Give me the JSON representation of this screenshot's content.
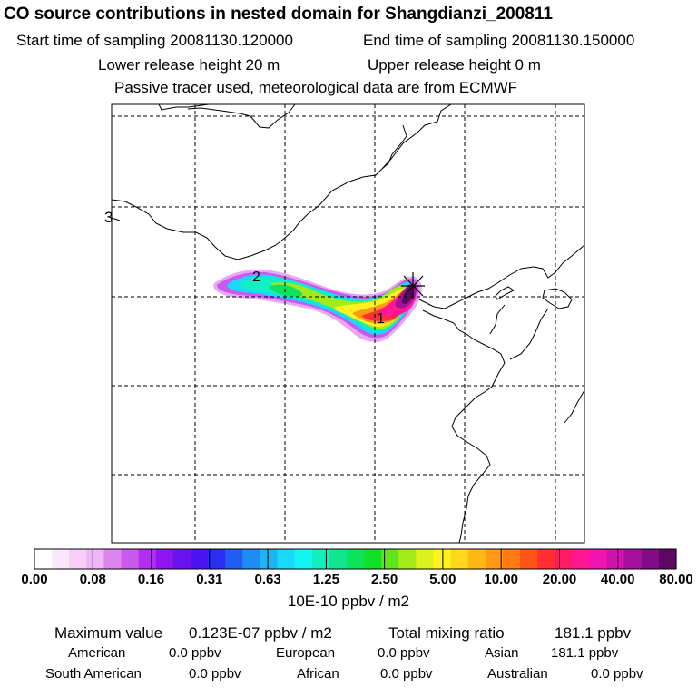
{
  "header": {
    "title": "CO  source contributions in nested domain for Shangdianzi_200811",
    "start_label": "Start time of sampling 20081130.120000",
    "end_label": "End time of sampling 20081130.150000",
    "lower_label": "Lower release height   20 m",
    "upper_label": "Upper release height    0 m",
    "note": "Passive tracer used, meteorological data are from ECMWF"
  },
  "map": {
    "edge_label": "3",
    "markers": [
      {
        "label": "1"
      },
      {
        "label": "2"
      }
    ],
    "colors": {
      "coast": "#000000",
      "grid": "#000000"
    }
  },
  "colorbar": {
    "colors": [
      "#ffffff",
      "#fbe7fb",
      "#f6d0f8",
      "#efb7f6",
      "#dd86ef",
      "#c85bed",
      "#b12ef1",
      "#8e16f0",
      "#6b12f1",
      "#4a14f2",
      "#2a2ff2",
      "#1f5df3",
      "#1e8cf5",
      "#1cb6f7",
      "#1ad8f8",
      "#14f5f1",
      "#12f0c2",
      "#10e68f",
      "#0ce25b",
      "#10e127",
      "#5ee419",
      "#a4ea1a",
      "#dbf21c",
      "#fff21e",
      "#ffd81b",
      "#ffb916",
      "#ff9a14",
      "#ff7a13",
      "#ff5419",
      "#ff2f33",
      "#ff1b63",
      "#ff1690",
      "#f214b0",
      "#d012b0",
      "#a70f9d",
      "#820b86",
      "#5c0762"
    ],
    "ticks": [
      "0.00",
      "0.08",
      "0.16",
      "0.31",
      "0.63",
      "1.25",
      "2.50",
      "5.00",
      "10.00",
      "20.00",
      "40.00",
      "80.00"
    ],
    "unit": "10E-10 ppbv / m2"
  },
  "stats": {
    "max_label": "Maximum value",
    "max_value": "0.123E-07 ppbv / m2",
    "total_label": "Total mixing ratio",
    "total_value": "181.1 ppbv",
    "regions": [
      {
        "name": "American",
        "value": "0.0 ppbv"
      },
      {
        "name": "European",
        "value": "0.0 ppbv"
      },
      {
        "name": "Asian",
        "value": "181.1 ppbv"
      },
      {
        "name": "South American",
        "value": "0.0 ppbv"
      },
      {
        "name": "African",
        "value": "0.0 ppbv"
      },
      {
        "name": "Australian",
        "value": "0.0 ppbv"
      }
    ]
  }
}
